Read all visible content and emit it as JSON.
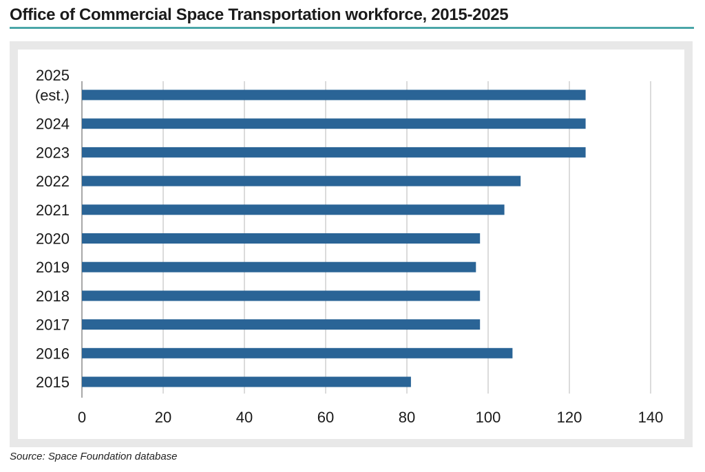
{
  "title": "Office of Commercial Space Transportation workforce, 2015-2025",
  "source": "Source: Space Foundation database",
  "colors": {
    "bar": "#2a6496",
    "accent_rule": "#4aa6a8",
    "panel": "#e8e8e8",
    "grid": "#cfcfcf"
  },
  "chart_data": {
    "type": "bar",
    "orientation": "horizontal",
    "categories": [
      [
        "2025",
        "(est.)"
      ],
      [
        "2024"
      ],
      [
        "2023"
      ],
      [
        "2022"
      ],
      [
        "2021"
      ],
      [
        "2020"
      ],
      [
        "2019"
      ],
      [
        "2018"
      ],
      [
        "2017"
      ],
      [
        "2016"
      ],
      [
        "2015"
      ]
    ],
    "values": [
      124,
      124,
      124,
      108,
      104,
      98,
      97,
      98,
      98,
      106,
      81
    ],
    "xlim": [
      0,
      140
    ],
    "xticks": [
      0,
      20,
      40,
      60,
      80,
      100,
      120,
      140
    ],
    "grid": true
  }
}
